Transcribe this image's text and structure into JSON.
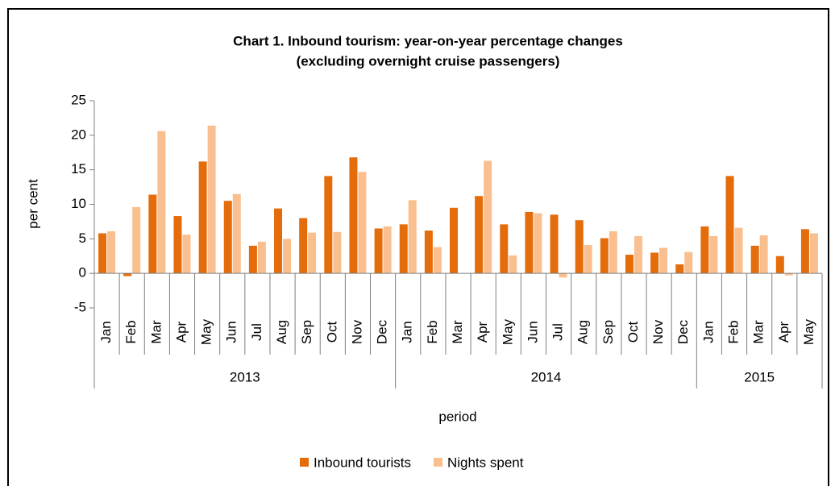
{
  "chart_data": {
    "type": "bar",
    "title": "Chart 1.  Inbound tourism: year-on-year percentage changes",
    "subtitle": "(excluding overnight cruise passengers)",
    "y_label": "per cent",
    "x_label": "period",
    "category_groups": [
      {
        "label": "2013",
        "categories": [
          "Jan",
          "Feb",
          "Mar",
          "Apr",
          "May",
          "Jun",
          "Jul",
          "Aug",
          "Sep",
          "Oct",
          "Nov",
          "Dec"
        ]
      },
      {
        "label": "2014",
        "categories": [
          "Jan",
          "Feb",
          "Mar",
          "Apr",
          "May",
          "Jun",
          "Jul",
          "Aug",
          "Sep",
          "Oct",
          "Nov",
          "Dec"
        ]
      },
      {
        "label": "2015",
        "categories": [
          "Jan",
          "Feb",
          "Mar",
          "Apr",
          "May"
        ]
      }
    ],
    "series": [
      {
        "name": "Inbound tourists",
        "color": "#e46c0a",
        "values": [
          5.8,
          -0.4,
          11.4,
          8.3,
          16.2,
          10.5,
          4.0,
          9.4,
          8.0,
          14.1,
          16.8,
          6.5,
          7.1,
          6.2,
          9.5,
          11.2,
          7.1,
          8.9,
          8.5,
          7.7,
          5.1,
          2.7,
          3.0,
          1.3,
          6.8,
          14.1,
          4.0,
          2.5,
          6.4
        ]
      },
      {
        "name": "Nights spent",
        "color": "#fabf8f",
        "values": [
          6.1,
          9.6,
          20.6,
          5.6,
          21.4,
          11.5,
          4.6,
          5.0,
          5.9,
          6.0,
          14.7,
          6.8,
          10.6,
          3.8,
          0,
          16.3,
          2.6,
          8.7,
          -0.6,
          4.1,
          6.1,
          5.4,
          3.7,
          3.1,
          5.4,
          6.6,
          5.5,
          -0.3,
          5.8
        ]
      }
    ],
    "ylim": [
      -5,
      25
    ],
    "yticks": [
      -5,
      0,
      5,
      10,
      15,
      20,
      25
    ],
    "grid": false,
    "legend": "bottom"
  }
}
